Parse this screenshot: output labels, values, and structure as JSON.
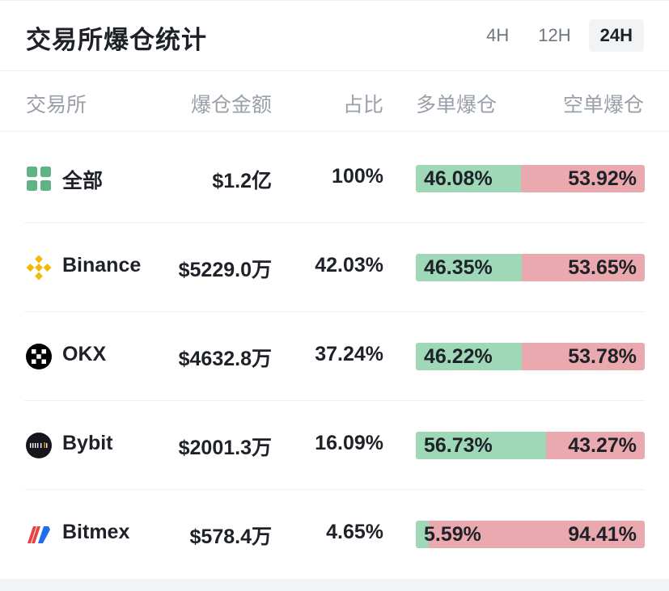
{
  "header": {
    "title": "交易所爆仓统计",
    "tabs": [
      {
        "label": "4H",
        "active": false
      },
      {
        "label": "12H",
        "active": false
      },
      {
        "label": "24H",
        "active": true
      }
    ]
  },
  "columns": {
    "exchange": "交易所",
    "amount": "爆仓金额",
    "percent": "占比",
    "long": "多单爆仓",
    "short": "空单爆仓"
  },
  "colors": {
    "long_bar": "#9fd8b7",
    "short_bar": "#eaa9ae"
  },
  "rows": [
    {
      "logo": "grid-all-icon",
      "name": "全部",
      "amount": "$1.2亿",
      "percent": "100%",
      "long": "46.08%",
      "short": "53.92%",
      "long_fraction": 0.4608
    },
    {
      "logo": "binance-icon",
      "name": "Binance",
      "amount": "$5229.0万",
      "percent": "42.03%",
      "long": "46.35%",
      "short": "53.65%",
      "long_fraction": 0.4635
    },
    {
      "logo": "okx-icon",
      "name": "OKX",
      "amount": "$4632.8万",
      "percent": "37.24%",
      "long": "46.22%",
      "short": "53.78%",
      "long_fraction": 0.4622
    },
    {
      "logo": "bybit-icon",
      "name": "Bybit",
      "amount": "$2001.3万",
      "percent": "16.09%",
      "long": "56.73%",
      "short": "43.27%",
      "long_fraction": 0.5673
    },
    {
      "logo": "bitmex-icon",
      "name": "Bitmex",
      "amount": "$578.4万",
      "percent": "4.65%",
      "long": "5.59%",
      "short": "94.41%",
      "long_fraction": 0.0559
    }
  ]
}
